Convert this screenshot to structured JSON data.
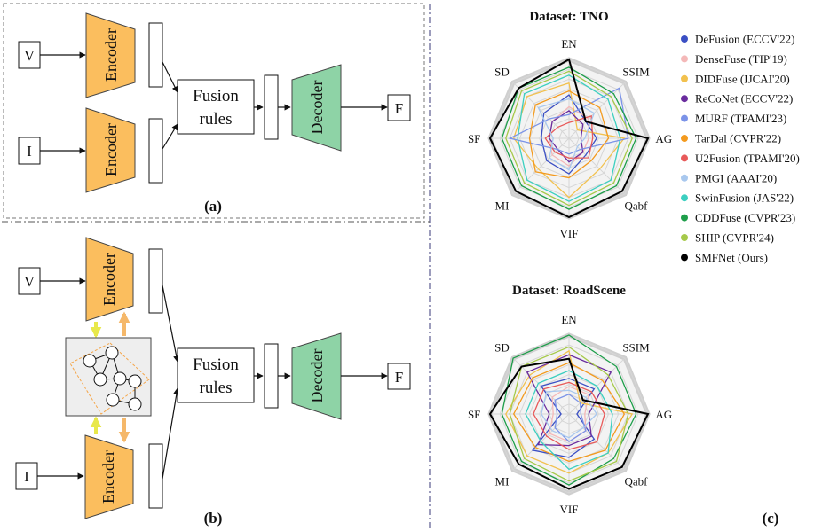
{
  "panel_a": {
    "caption": "(a)",
    "input_v": "V",
    "input_i": "I",
    "encoder_top": "Encoder",
    "encoder_bottom": "Encoder",
    "fusion_line1": "Fusion",
    "fusion_line2": "rules",
    "decoder": "Decoder",
    "output": "F"
  },
  "panel_b": {
    "caption": "(b)",
    "input_v": "V",
    "input_i": "I",
    "encoder_top": "Encoder",
    "encoder_bottom": "Encoder",
    "fusion_line1": "Fusion",
    "fusion_line2": "rules",
    "decoder": "Decoder",
    "output": "F"
  },
  "panel_c": {
    "caption": "(c)",
    "radar_tno": {
      "title": "Dataset: TNO"
    },
    "radar_roadscene": {
      "title": "Dataset: RoadScene"
    }
  },
  "colors": {
    "encoder_fill": "#FBBE5E",
    "decoder_fill": "#8ED3A6",
    "graph_box_fill": "#EEEEEE",
    "arrow_yellow": "#E8E84A",
    "arrow_orange": "#F5B86A"
  },
  "chart_data": [
    {
      "type": "radar",
      "title": "Dataset: TNO",
      "axes": [
        "EN",
        "SSIM",
        "AG",
        "Qabf",
        "VIF",
        "MI",
        "SF",
        "SD"
      ],
      "range": [
        0,
        1
      ],
      "grid_levels": 8,
      "legend_position": "right",
      "series": [
        {
          "name": "DeFusion (ECCV'22)",
          "color": "#3B4FC4",
          "values": [
            0.55,
            0.3,
            0.35,
            0.3,
            0.45,
            0.4,
            0.35,
            0.45
          ]
        },
        {
          "name": "DenseFuse (TIP'19)",
          "color": "#F4B8B8",
          "values": [
            0.4,
            0.35,
            0.25,
            0.25,
            0.35,
            0.3,
            0.25,
            0.3
          ]
        },
        {
          "name": "DIDFuse (IJCAI'20)",
          "color": "#F2C14E",
          "values": [
            0.7,
            0.15,
            0.7,
            0.55,
            0.75,
            0.55,
            0.7,
            0.75
          ]
        },
        {
          "name": "ReCoNet (ECCV'22)",
          "color": "#6A2C9E",
          "values": [
            0.35,
            0.25,
            0.15,
            0.25,
            0.3,
            0.2,
            0.25,
            0.3
          ]
        },
        {
          "name": "MURF (TPAMI'23)",
          "color": "#7B93E8",
          "values": [
            0.3,
            0.9,
            0.75,
            0.2,
            0.2,
            0.2,
            0.75,
            0.35
          ]
        },
        {
          "name": "TarDal (CVPR'22)",
          "color": "#F39A1E",
          "values": [
            0.6,
            0.55,
            0.5,
            0.4,
            0.5,
            0.6,
            0.5,
            0.6
          ]
        },
        {
          "name": "U2Fusion (TPAMI'20)",
          "color": "#E85A5A",
          "values": [
            0.2,
            0.4,
            0.3,
            0.35,
            0.25,
            0.25,
            0.3,
            0.2
          ]
        },
        {
          "name": "PMGI (AAAI'20)",
          "color": "#A9C8EE",
          "values": [
            0.5,
            0.45,
            0.2,
            0.15,
            0.4,
            0.35,
            0.2,
            0.55
          ]
        },
        {
          "name": "SwinFusion (JAS'22)",
          "color": "#3CCFC0",
          "values": [
            0.8,
            0.7,
            0.65,
            0.75,
            0.8,
            0.75,
            0.65,
            0.8
          ]
        },
        {
          "name": "CDDFuse (CVPR'23)",
          "color": "#1E9E4A",
          "values": [
            0.9,
            0.8,
            0.85,
            0.85,
            0.9,
            0.85,
            0.85,
            0.9
          ]
        },
        {
          "name": "SHIP (CVPR'24)",
          "color": "#A6C94A",
          "values": [
            0.85,
            0.75,
            0.8,
            0.8,
            0.85,
            0.8,
            0.8,
            0.85
          ]
        },
        {
          "name": "SMFNet (Ours)",
          "color": "#000000",
          "values": [
            1.0,
            0.3,
            1.0,
            0.95,
            1.0,
            0.95,
            1.0,
            0.9
          ]
        }
      ]
    },
    {
      "type": "radar",
      "title": "Dataset: RoadScene",
      "axes": [
        "EN",
        "SSIM",
        "AG",
        "Qabf",
        "VIF",
        "MI",
        "SF",
        "SD"
      ],
      "range": [
        0,
        1
      ],
      "grid_levels": 8,
      "series": [
        {
          "name": "DeFusion (ECCV'22)",
          "color": "#3B4FC4",
          "values": [
            0.45,
            0.45,
            0.1,
            0.45,
            0.55,
            0.65,
            0.1,
            0.5
          ]
        },
        {
          "name": "DenseFuse (TIP'19)",
          "color": "#F4B8B8",
          "values": [
            0.35,
            0.35,
            0.2,
            0.3,
            0.35,
            0.35,
            0.2,
            0.3
          ]
        },
        {
          "name": "DIDFuse (IJCAI'20)",
          "color": "#F2C14E",
          "values": [
            0.8,
            0.2,
            0.8,
            0.7,
            0.75,
            0.75,
            0.8,
            0.7
          ]
        },
        {
          "name": "ReCoNet (ECCV'22)",
          "color": "#6A2C9E",
          "values": [
            0.75,
            0.75,
            0.25,
            0.4,
            0.4,
            0.55,
            0.25,
            0.75
          ]
        },
        {
          "name": "MURF (TPAMI'23)",
          "color": "#7B93E8",
          "values": [
            0.25,
            0.2,
            0.15,
            0.3,
            0.35,
            0.25,
            0.15,
            0.25
          ]
        },
        {
          "name": "TarDal (CVPR'22)",
          "color": "#F39A1E",
          "values": [
            0.65,
            0.6,
            0.7,
            0.65,
            0.6,
            0.6,
            0.7,
            0.65
          ]
        },
        {
          "name": "U2Fusion (TPAMI'20)",
          "color": "#E85A5A",
          "values": [
            0.4,
            0.4,
            0.45,
            0.5,
            0.45,
            0.4,
            0.45,
            0.45
          ]
        },
        {
          "name": "PMGI (AAAI'20)",
          "color": "#A9C8EE",
          "values": [
            0.3,
            0.3,
            0.35,
            0.25,
            0.3,
            0.3,
            0.35,
            0.4
          ]
        },
        {
          "name": "SwinFusion (JAS'22)",
          "color": "#3CCFC0",
          "values": [
            0.55,
            0.5,
            0.55,
            0.7,
            0.7,
            0.5,
            0.55,
            0.55
          ]
        },
        {
          "name": "CDDFuse (CVPR'23)",
          "color": "#1E9E4A",
          "values": [
            1.0,
            0.85,
            0.85,
            0.8,
            0.9,
            0.85,
            0.85,
            1.0
          ]
        },
        {
          "name": "SHIP (CVPR'24)",
          "color": "#A6C94A",
          "values": [
            0.85,
            0.7,
            0.75,
            0.85,
            0.85,
            0.8,
            0.75,
            0.85
          ]
        },
        {
          "name": "SMFNet (Ours)",
          "color": "#000000",
          "values": [
            0.7,
            0.25,
            1.0,
            0.95,
            0.95,
            0.9,
            1.0,
            0.85
          ]
        }
      ]
    }
  ]
}
